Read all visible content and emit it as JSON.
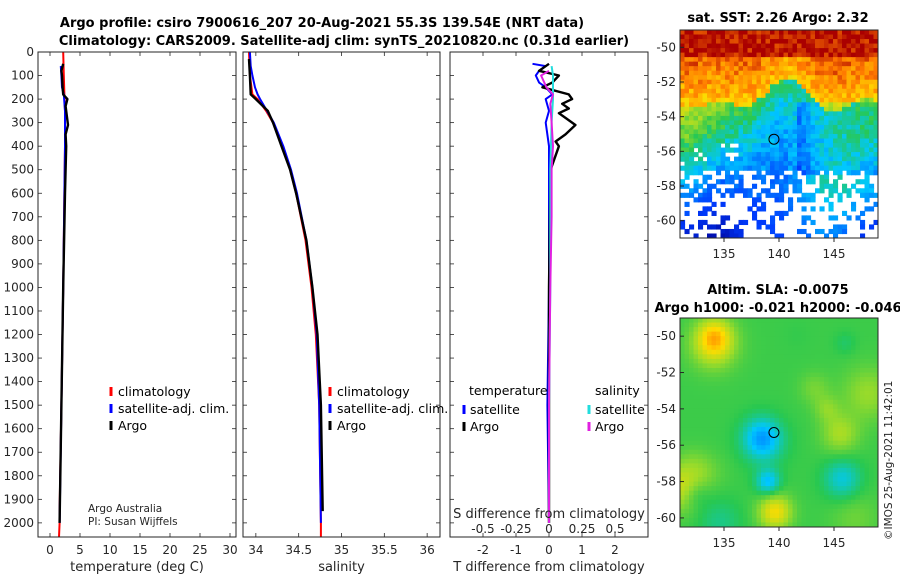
{
  "header": {
    "title_line1": "Argo profile: csiro 7900616_207 20-Aug-2021 55.3S 139.54E (NRT data)",
    "title_line2": "Climatology: CARS2009. Satellite-adj clim: synTS_20210820.nc (0.31d earlier)"
  },
  "credits": {
    "line1": "Argo Australia",
    "line2": "PI: Susan Wijffels",
    "imos": "©IMOS 25-Aug-2021 11:42:01"
  },
  "colors": {
    "climatology": "#ff0000",
    "satellite": "#0000ff",
    "argo": "#000000",
    "sal_satellite": "#22dddd",
    "sal_argo": "#e020e0"
  },
  "chart_data": [
    {
      "type": "line",
      "name": "temperature-profile",
      "xlabel": "temperature (deg C)",
      "ylabel": "",
      "xlim": [
        -2,
        31
      ],
      "ylim": [
        2060,
        0
      ],
      "xticks": [
        0,
        5,
        10,
        15,
        20,
        25,
        30
      ],
      "yticks": [
        0,
        100,
        200,
        300,
        400,
        500,
        600,
        700,
        800,
        900,
        1000,
        1100,
        1200,
        1300,
        1400,
        1500,
        1600,
        1700,
        1800,
        1900,
        2000
      ],
      "legend": [
        "climatology",
        "satellite-adj. clim.",
        "Argo"
      ],
      "series": [
        {
          "name": "climatology",
          "color": "#ff0000",
          "depth": [
            0,
            100,
            180,
            250,
            400,
            600,
            1000,
            1500,
            1950,
            2000,
            2060
          ],
          "values": [
            2.2,
            2.3,
            2.4,
            2.5,
            2.5,
            2.4,
            2.2,
            1.9,
            1.6,
            1.6,
            1.5
          ]
        },
        {
          "name": "satellite-adj. clim.",
          "color": "#0000ff",
          "depth": [
            60,
            100,
            150,
            180,
            250,
            400,
            600,
            1000,
            1500,
            2000
          ],
          "values": [
            1.8,
            1.9,
            2.0,
            2.3,
            2.5,
            2.5,
            2.4,
            2.2,
            1.9,
            1.6
          ]
        },
        {
          "name": "Argo",
          "color": "#000000",
          "depth": [
            50,
            80,
            100,
            150,
            180,
            200,
            230,
            270,
            310,
            350,
            400,
            600,
            1000,
            1500,
            2000
          ],
          "values": [
            2.2,
            1.9,
            2.0,
            2.1,
            2.2,
            2.9,
            2.6,
            2.8,
            3.0,
            2.6,
            2.7,
            2.5,
            2.2,
            1.9,
            1.6
          ]
        }
      ]
    },
    {
      "type": "line",
      "name": "salinity-profile",
      "xlabel": "salinity",
      "xlim": [
        33.85,
        36.15
      ],
      "ylim": [
        2060,
        0
      ],
      "xticks": [
        34,
        34.5,
        35,
        35.5,
        36
      ],
      "xticklabels": [
        "34",
        "34.5",
        "35",
        "35.5",
        "36"
      ],
      "legend": [
        "climatology",
        "satellite-adj. clim.",
        "Argo"
      ],
      "series": [
        {
          "name": "climatology",
          "color": "#ff0000",
          "depth": [
            0,
            100,
            180,
            200,
            250,
            300,
            400,
            500,
            600,
            800,
            1000,
            1200,
            1500,
            2000,
            2060
          ],
          "values": [
            33.92,
            33.93,
            33.96,
            34.02,
            34.12,
            34.2,
            34.31,
            34.4,
            34.47,
            34.58,
            34.65,
            34.7,
            34.74,
            34.76,
            34.76
          ]
        },
        {
          "name": "satellite-adj. clim.",
          "color": "#0000ff",
          "depth": [
            0,
            60,
            100,
            150,
            180,
            200,
            250,
            300,
            400,
            500,
            600,
            800,
            1000,
            1200,
            1500,
            2000
          ],
          "values": [
            33.93,
            33.94,
            33.96,
            33.99,
            34.02,
            34.05,
            34.13,
            34.21,
            34.32,
            34.41,
            34.48,
            34.59,
            34.66,
            34.71,
            34.74,
            34.76
          ]
        },
        {
          "name": "Argo",
          "color": "#000000",
          "depth": [
            30,
            100,
            180,
            200,
            250,
            300,
            400,
            500,
            600,
            800,
            1000,
            1200,
            1500,
            1950
          ],
          "values": [
            33.92,
            33.93,
            33.94,
            34.0,
            34.14,
            34.2,
            34.3,
            34.4,
            34.47,
            34.59,
            34.66,
            34.72,
            34.76,
            34.78
          ]
        }
      ]
    },
    {
      "type": "line",
      "name": "difference-profile",
      "xlabel": "T difference from climatology",
      "top_xlabel": "S difference from climatology",
      "xlim": [
        -3,
        3
      ],
      "top_xlim": [
        -0.75,
        0.75
      ],
      "ylim": [
        2060,
        0
      ],
      "xticks": [
        -2,
        -1,
        0,
        1,
        2
      ],
      "top_xticks": [
        -0.5,
        -0.25,
        0,
        0.25,
        0.5
      ],
      "top_xticklabels": [
        "-0.5",
        "-0.25",
        "0",
        "0.25",
        "0.5"
      ],
      "legend_temperature_title": "temperature",
      "legend_salinity_title": "salinity",
      "legend_temperature": [
        "satellite",
        "Argo"
      ],
      "legend_salinity": [
        "satellite",
        "Argo"
      ],
      "series": [
        {
          "name": "T satellite",
          "color": "#0000ff",
          "depth": [
            50,
            60,
            80,
            100,
            130,
            150,
            180,
            200,
            250,
            300,
            400,
            600,
            1000,
            1500,
            2000
          ],
          "values": [
            -0.5,
            -0.1,
            -0.3,
            -0.4,
            -0.3,
            -0.1,
            0.1,
            -0.1,
            0.0,
            -0.1,
            0.0,
            0.0,
            0.0,
            -0.05,
            0.0
          ]
        },
        {
          "name": "T Argo",
          "color": "#000000",
          "depth": [
            50,
            80,
            100,
            130,
            150,
            180,
            200,
            220,
            240,
            260,
            280,
            310,
            350,
            380,
            400,
            500,
            1000,
            2000
          ],
          "values": [
            0.0,
            -0.3,
            0.3,
            0.1,
            -0.2,
            0.6,
            0.7,
            0.4,
            0.6,
            0.3,
            0.5,
            0.8,
            0.5,
            0.2,
            0.3,
            0.05,
            0.0,
            0.0
          ]
        },
        {
          "name": "S satellite",
          "color": "#22dddd",
          "depth": [
            60,
            100,
            200,
            300,
            500,
            1000,
            1500,
            2000
          ],
          "values": [
            0.02,
            0.03,
            0.03,
            0.02,
            0.01,
            0.01,
            0.0,
            0.0
          ]
        },
        {
          "name": "S Argo",
          "color": "#e020e0",
          "depth": [
            80,
            100,
            150,
            180,
            220,
            300,
            400,
            500,
            700,
            1000,
            1500,
            2000
          ],
          "values": [
            0.0,
            -0.06,
            -0.02,
            0.03,
            0.01,
            0.02,
            0.03,
            0.02,
            0.02,
            0.01,
            0.0,
            0.0
          ]
        }
      ]
    },
    {
      "type": "heatmap",
      "name": "sst-map",
      "title": "sat. SST: 2.26 Argo: 2.32",
      "xlim": [
        131,
        149
      ],
      "ylim": [
        -61,
        -49
      ],
      "xticks": [
        135,
        140,
        145
      ],
      "yticks": [
        -50,
        -52,
        -54,
        -56,
        -58,
        -60
      ],
      "float_position": {
        "lon": 139.54,
        "lat": -55.3
      }
    },
    {
      "type": "heatmap",
      "name": "sla-map",
      "title_line1": "Altim. SLA: -0.0075",
      "title_line2": "Argo h1000: -0.021 h2000: -0.046",
      "xlim": [
        131,
        149
      ],
      "ylim": [
        -60.5,
        -49
      ],
      "xticks": [
        135,
        140,
        145
      ],
      "yticks": [
        -50,
        -52,
        -54,
        -56,
        -58,
        -60
      ],
      "float_position": {
        "lon": 139.54,
        "lat": -55.3
      }
    }
  ]
}
